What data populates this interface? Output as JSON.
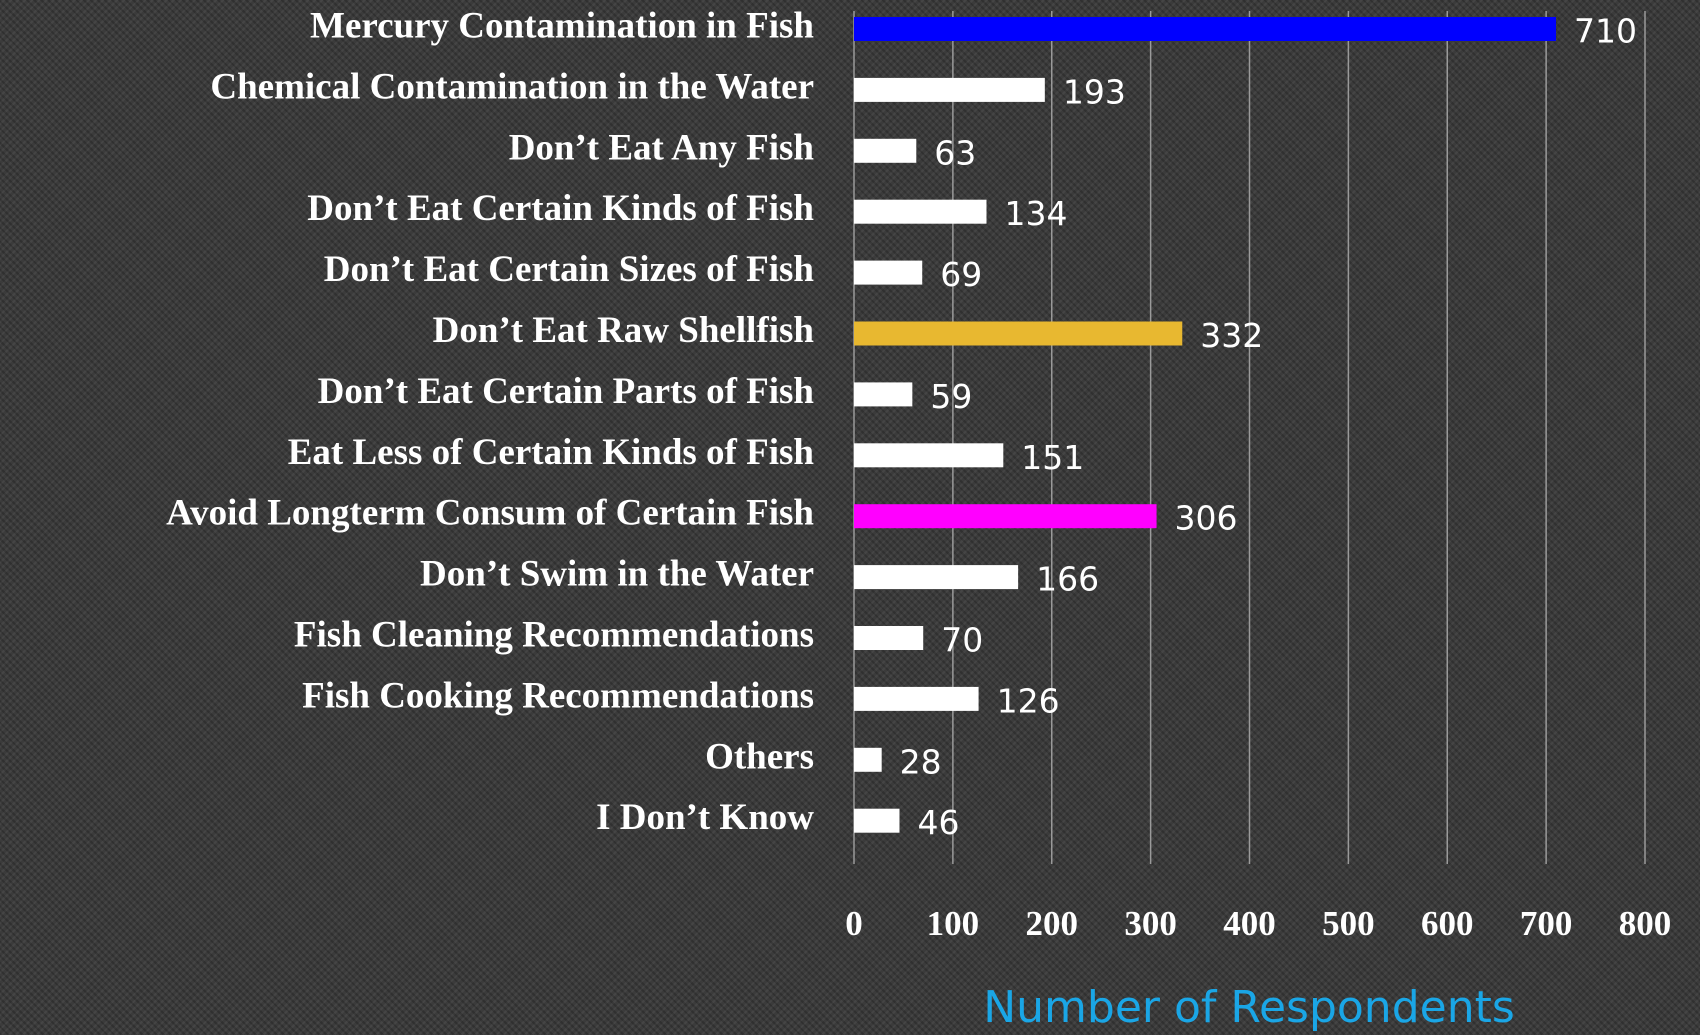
{
  "chart_data": {
    "type": "hbar",
    "categories": [
      "Mercury Contamination in Fish",
      "Chemical Contamination in the Water",
      "Don’t Eat Any Fish",
      "Don’t Eat Certain Kinds of Fish",
      "Don’t Eat Certain Sizes of Fish",
      "Don’t Eat Raw Shellfish",
      "Don’t Eat Certain Parts of Fish",
      "Eat Less of Certain Kinds of Fish",
      "Avoid Longterm Consum of Certain Fish",
      "Don’t Swim in the Water",
      "Fish Cleaning Recommendations",
      "Fish Cooking Recommendations",
      "Others",
      "I Don’t Know"
    ],
    "values": [
      710,
      193,
      63,
      134,
      69,
      332,
      59,
      151,
      306,
      166,
      70,
      126,
      28,
      46
    ],
    "colors": [
      "#0000ff",
      "#ffffff",
      "#ffffff",
      "#ffffff",
      "#ffffff",
      "#e8b830",
      "#ffffff",
      "#ffffff",
      "#ff00ff",
      "#ffffff",
      "#ffffff",
      "#ffffff",
      "#ffffff",
      "#ffffff"
    ],
    "xlabel": "Number of Respondents",
    "xlim": [
      0,
      800
    ],
    "xticks": [
      0,
      100,
      200,
      300,
      400,
      500,
      600,
      700,
      800
    ],
    "grid": true
  }
}
